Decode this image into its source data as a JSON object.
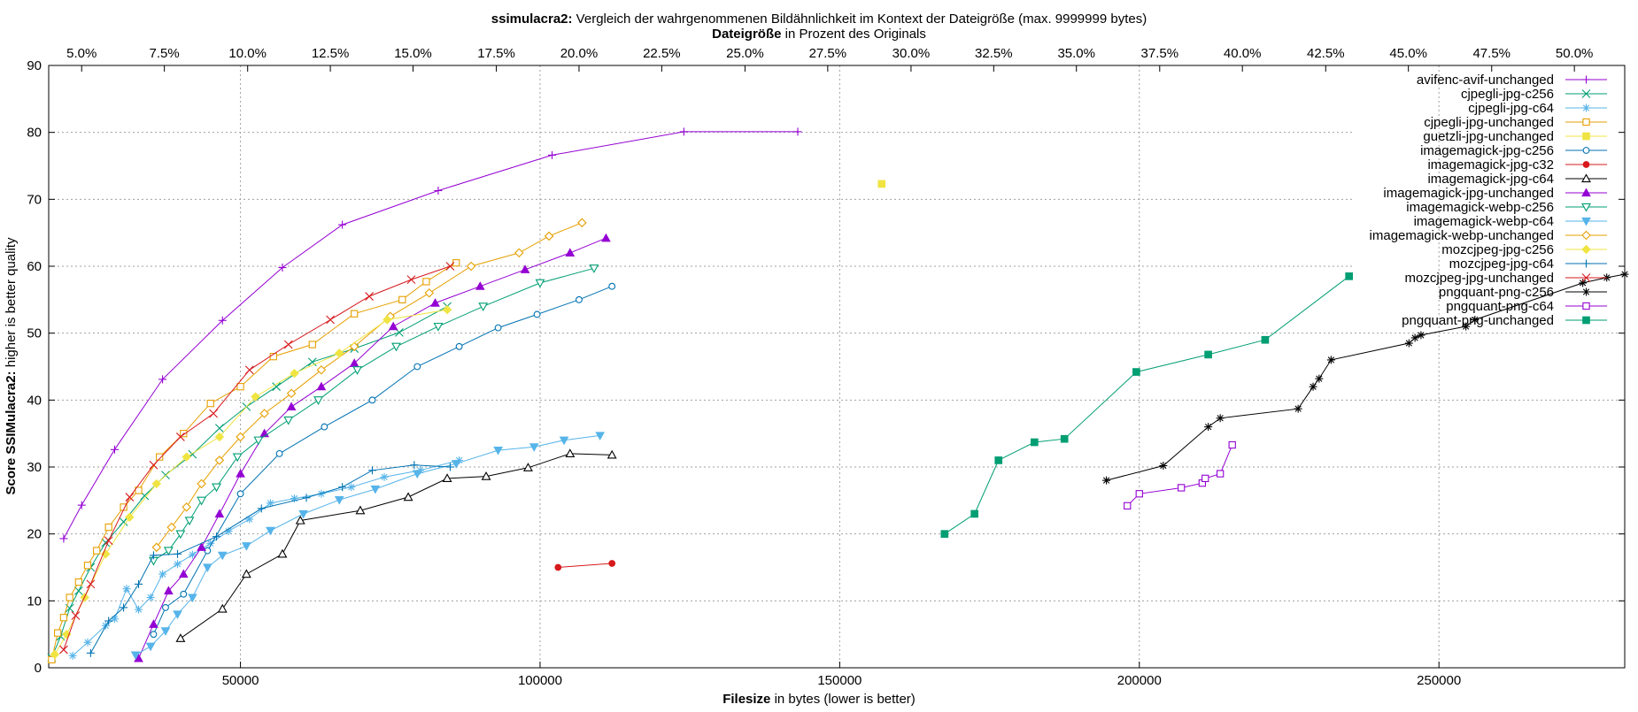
{
  "chart_data": {
    "type": "line",
    "title": {
      "bold": "ssimulacra2:",
      "rest": " Vergleich der wahrgenommenen Bildähnlichkeit im Kontext der Dateigröße (max. 9999999 bytes)"
    },
    "x2label": {
      "bold": "Dateigröße",
      "rest": " in Prozent des Originals"
    },
    "xlabel": {
      "bold": "Filesize",
      "rest": " in bytes (lower is better)"
    },
    "ylabel": {
      "bold": "Score SSIMulacra2:",
      "rest": " higher is better quality"
    },
    "xlim": [
      18000,
      281000
    ],
    "ylim": [
      0,
      90
    ],
    "grid": true,
    "legend_position": "top-right",
    "x_ticks": [
      {
        "value": 50000,
        "label": "50000"
      },
      {
        "value": 100000,
        "label": "100000"
      },
      {
        "value": 150000,
        "label": "150000"
      },
      {
        "value": 200000,
        "label": "200000"
      },
      {
        "value": 250000,
        "label": "250000"
      }
    ],
    "y_ticks": [
      {
        "value": 0,
        "label": "0"
      },
      {
        "value": 10,
        "label": "10"
      },
      {
        "value": 20,
        "label": "20"
      },
      {
        "value": 30,
        "label": "30"
      },
      {
        "value": 40,
        "label": "40"
      },
      {
        "value": 50,
        "label": "50"
      },
      {
        "value": 60,
        "label": "60"
      },
      {
        "value": 70,
        "label": "70"
      },
      {
        "value": 80,
        "label": "80"
      },
      {
        "value": 90,
        "label": "90"
      }
    ],
    "x2_ticks": [
      {
        "value": 23500,
        "label": "5.0%"
      },
      {
        "value": 37300,
        "label": "7.5%"
      },
      {
        "value": 51200,
        "label": "10.0%"
      },
      {
        "value": 65000,
        "label": "12.5%"
      },
      {
        "value": 78800,
        "label": "15.0%"
      },
      {
        "value": 92700,
        "label": "17.5%"
      },
      {
        "value": 106500,
        "label": "20.0%"
      },
      {
        "value": 120300,
        "label": "22.5%"
      },
      {
        "value": 134200,
        "label": "25.0%"
      },
      {
        "value": 148000,
        "label": "27.5%"
      },
      {
        "value": 161900,
        "label": "30.0%"
      },
      {
        "value": 175700,
        "label": "32.5%"
      },
      {
        "value": 189500,
        "label": "35.0%"
      },
      {
        "value": 203400,
        "label": "37.5%"
      },
      {
        "value": 217200,
        "label": "40.0%"
      },
      {
        "value": 231100,
        "label": "42.5%"
      },
      {
        "value": 244900,
        "label": "45.0%"
      },
      {
        "value": 258800,
        "label": "47.5%"
      },
      {
        "value": 272600,
        "label": "50.0%"
      }
    ],
    "series": [
      {
        "name": "avifenc-avif-unchanged",
        "color": "#9400d3",
        "marker": "plus",
        "x": [
          20500,
          23500,
          29000,
          37000,
          47000,
          57000,
          67000,
          83000,
          102000,
          124000,
          143000
        ],
        "y": [
          19.3,
          24.3,
          32.6,
          43.1,
          51.9,
          59.8,
          66.2,
          71.3,
          76.6,
          80.1,
          80.1
        ]
      },
      {
        "name": "cjpegli-jpg-c256",
        "color": "#009e73",
        "marker": "x",
        "x": [
          18500,
          20000,
          21500,
          23000,
          25000,
          27500,
          30500,
          34000,
          37500,
          42000,
          46500,
          51000,
          56000,
          62000,
          69000,
          76500,
          84500
        ],
        "y": [
          1.5,
          4.7,
          8.9,
          11.5,
          15.0,
          18.7,
          21.8,
          25.7,
          28.8,
          31.9,
          35.8,
          39.0,
          42.0,
          45.7,
          47.7,
          50.1,
          54.0
        ]
      },
      {
        "name": "cjpegli-jpg-c64",
        "color": "#56b4e9",
        "marker": "star",
        "x": [
          22000,
          24500,
          27500,
          29000,
          31000,
          33000,
          35000,
          37000,
          39500,
          42000,
          45000,
          48000,
          51500,
          55000,
          59000,
          63500,
          68500,
          74000,
          80000,
          86500
        ],
        "y": [
          1.8,
          3.8,
          6.3,
          7.3,
          11.8,
          8.7,
          10.5,
          14.0,
          15.5,
          16.9,
          18.6,
          20.4,
          22.2,
          24.6,
          25.3,
          26.0,
          27.0,
          28.5,
          29.5,
          31.0
        ]
      },
      {
        "name": "cjpegli-jpg-unchanged",
        "color": "#e69f00",
        "marker": "square",
        "x": [
          18500,
          19500,
          20500,
          21500,
          23000,
          24500,
          26000,
          28000,
          30500,
          33000,
          36500,
          40500,
          45000,
          50000,
          55500,
          62000,
          69000,
          77000,
          81000,
          86000
        ],
        "y": [
          1.2,
          5.2,
          7.5,
          10.5,
          12.8,
          15.3,
          17.5,
          21.0,
          24.0,
          26.5,
          31.5,
          35.0,
          39.5,
          42.0,
          46.5,
          48.3,
          52.9,
          55.0,
          57.7,
          60.5
        ]
      },
      {
        "name": "guetzli-jpg-unchanged",
        "color": "#f0e442",
        "marker": "fsquare",
        "x": [
          157000
        ],
        "y": [
          72.3
        ]
      },
      {
        "name": "imagemagick-jpg-c256",
        "color": "#0072b2",
        "marker": "circle",
        "x": [
          35500,
          37500,
          40500,
          44500,
          50000,
          56500,
          64000,
          72000,
          79500,
          86500,
          93000,
          99500,
          106500,
          112000
        ],
        "y": [
          5.0,
          9.0,
          11.0,
          17.5,
          26.0,
          32.0,
          36.0,
          40.0,
          45.0,
          48.0,
          50.8,
          52.8,
          55.0,
          57.0
        ]
      },
      {
        "name": "imagemagick-jpg-c32",
        "color": "#d7191c",
        "marker": "fcircle",
        "x": [
          103000,
          112000
        ],
        "y": [
          15.0,
          15.6
        ]
      },
      {
        "name": "imagemagick-jpg-c64",
        "color": "#000000",
        "marker": "triangle",
        "x": [
          40000,
          47000,
          51000,
          57000,
          60000,
          70000,
          78000,
          84500,
          91000,
          98000,
          105000,
          112000
        ],
        "y": [
          4.4,
          8.8,
          14.0,
          17.0,
          22.0,
          23.5,
          25.5,
          28.3,
          28.6,
          29.9,
          32.0,
          31.8
        ]
      },
      {
        "name": "imagemagick-jpg-unchanged",
        "color": "#9400d3",
        "marker": "ftriangle",
        "x": [
          33000,
          35500,
          38000,
          40500,
          43500,
          46500,
          50000,
          54000,
          58500,
          63500,
          69000,
          75500,
          82500,
          90000,
          97500,
          105000,
          111000
        ],
        "y": [
          1.4,
          6.5,
          11.5,
          14.0,
          18.0,
          23.0,
          29.0,
          35.0,
          39.0,
          42.0,
          45.5,
          51.0,
          54.5,
          57.0,
          59.5,
          62.0,
          64.2
        ]
      },
      {
        "name": "imagemagick-webp-c256",
        "color": "#009e73",
        "marker": "dtriangle",
        "x": [
          35500,
          38000,
          40000,
          41500,
          43500,
          46000,
          49500,
          53000,
          58000,
          63000,
          69500,
          76000,
          83000,
          90500,
          100000,
          109000
        ],
        "y": [
          16.0,
          17.5,
          20.0,
          22.0,
          25.0,
          27.0,
          31.5,
          34.0,
          37.0,
          40.0,
          44.5,
          48.0,
          51.0,
          54.0,
          57.5,
          59.7
        ]
      },
      {
        "name": "imagemagick-webp-c64",
        "color": "#56b4e9",
        "marker": "fdtriangle",
        "x": [
          32500,
          35000,
          37500,
          39500,
          42000,
          44500,
          47000,
          51000,
          55000,
          60500,
          66500,
          72500,
          79500,
          86000,
          93000,
          99000,
          104000,
          110000
        ],
        "y": [
          1.9,
          3.2,
          5.5,
          8.0,
          10.5,
          15.0,
          16.8,
          18.2,
          20.5,
          23.0,
          25.1,
          26.7,
          29.0,
          30.5,
          32.5,
          33.0,
          34.0,
          34.7
        ]
      },
      {
        "name": "imagemagick-webp-unchanged",
        "color": "#e69f00",
        "marker": "diamond",
        "x": [
          36000,
          38500,
          41000,
          43500,
          46500,
          50000,
          54000,
          58500,
          63500,
          69000,
          75000,
          81500,
          88500,
          96500,
          101500,
          107000
        ],
        "y": [
          18.0,
          21.0,
          24.0,
          27.5,
          31.0,
          34.5,
          38.0,
          41.0,
          44.5,
          48.0,
          52.5,
          56.0,
          60.0,
          62.0,
          64.5,
          66.5
        ]
      },
      {
        "name": "mozcjpeg-jpg-c256",
        "color": "#f0e442",
        "marker": "fdiamond",
        "x": [
          19000,
          21000,
          24000,
          27500,
          31500,
          36000,
          41000,
          46500,
          52500,
          59000,
          66500,
          74500,
          84500
        ],
        "y": [
          2.0,
          5.0,
          10.5,
          17.0,
          22.5,
          27.5,
          31.5,
          34.5,
          40.5,
          44.0,
          47.0,
          52.0,
          53.5
        ]
      },
      {
        "name": "mozcjpeg-jpg-c64",
        "color": "#0072b2",
        "marker": "plus",
        "x": [
          25000,
          28000,
          30500,
          33000,
          35500,
          39500,
          46000,
          53500,
          61000,
          67000,
          72000,
          79000,
          85000
        ],
        "y": [
          2.2,
          7.0,
          9.0,
          12.5,
          16.8,
          17.0,
          19.6,
          23.8,
          25.4,
          27.0,
          29.5,
          30.3,
          30.0
        ]
      },
      {
        "name": "mozcjpeg-jpg-unchanged",
        "color": "#d7191c",
        "marker": "x",
        "x": [
          20500,
          22500,
          25000,
          28000,
          31500,
          35500,
          40000,
          45500,
          51500,
          58000,
          65000,
          71500,
          78500,
          85000
        ],
        "y": [
          2.7,
          7.8,
          12.5,
          19.0,
          25.5,
          30.3,
          34.5,
          38.0,
          44.5,
          48.3,
          52.0,
          55.5,
          58.0,
          60.0
        ]
      },
      {
        "name": "pngquant-png-c256",
        "color": "#000000",
        "marker": "star",
        "x": [
          194500,
          204000,
          211500,
          213500,
          226500,
          229000,
          230000,
          232000,
          245000,
          246000,
          247000,
          254500,
          256000,
          274000,
          278000,
          281000
        ],
        "y": [
          28.0,
          30.2,
          36.0,
          37.3,
          38.7,
          42.0,
          43.2,
          46.0,
          48.5,
          49.3,
          49.7,
          51.0,
          52.0,
          57.5,
          58.3,
          58.8
        ]
      },
      {
        "name": "pngquant-png-c64",
        "color": "#9400d3",
        "marker": "square",
        "x": [
          198000,
          200000,
          207000,
          210500,
          211000,
          213500,
          215500
        ],
        "y": [
          24.2,
          26.0,
          26.9,
          27.6,
          28.3,
          29.0,
          33.3
        ]
      },
      {
        "name": "pngquant-png-unchanged",
        "color": "#009e73",
        "marker": "fsquare",
        "x": [
          167500,
          172500,
          176500,
          182500,
          187500,
          199500,
          211500,
          221000,
          235000
        ],
        "y": [
          20.0,
          23.0,
          31.0,
          33.7,
          34.2,
          44.2,
          46.8,
          49.0,
          58.5
        ]
      }
    ]
  }
}
